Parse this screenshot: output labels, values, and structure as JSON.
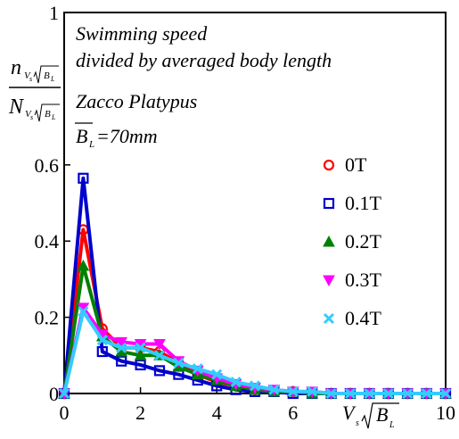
{
  "chart_data": {
    "type": "line",
    "x": [
      0,
      0.5,
      1,
      1.5,
      2,
      2.5,
      3,
      3.5,
      4,
      4.5,
      5,
      5.5,
      6,
      6.5,
      7,
      7.5,
      8,
      8.5,
      9,
      9.5,
      10
    ],
    "series": [
      {
        "name": "0T",
        "color": "#ff0000",
        "marker": "circle",
        "values": [
          0,
          0.43,
          0.17,
          0.12,
          0.12,
          0.11,
          0.08,
          0.05,
          0.03,
          0.02,
          0.01,
          0.005,
          0.005,
          0,
          0,
          0,
          0,
          0,
          0,
          0,
          0
        ]
      },
      {
        "name": "0.1T",
        "color": "#0000cc",
        "marker": "square",
        "values": [
          0,
          0.565,
          0.11,
          0.085,
          0.075,
          0.06,
          0.05,
          0.035,
          0.02,
          0.01,
          0.005,
          0.005,
          0,
          0,
          0,
          0,
          0,
          0,
          0,
          0,
          0
        ]
      },
      {
        "name": "0.2T",
        "color": "#008000",
        "marker": "triangle-up",
        "values": [
          0,
          0.335,
          0.15,
          0.11,
          0.1,
          0.1,
          0.07,
          0.05,
          0.035,
          0.02,
          0.01,
          0.005,
          0.005,
          0,
          0,
          0,
          0,
          0,
          0,
          0,
          0
        ]
      },
      {
        "name": "0.3T",
        "color": "#ff00ff",
        "marker": "triangle-down",
        "values": [
          0,
          0.225,
          0.155,
          0.135,
          0.13,
          0.13,
          0.085,
          0.06,
          0.04,
          0.025,
          0.015,
          0.01,
          0.005,
          0.005,
          0,
          0,
          0,
          0,
          0,
          0,
          0
        ]
      },
      {
        "name": "0.4T",
        "color": "#33ccff",
        "marker": "x",
        "values": [
          0,
          0.215,
          0.14,
          0.12,
          0.12,
          0.1,
          0.08,
          0.065,
          0.05,
          0.03,
          0.02,
          0.01,
          0.005,
          0.005,
          0,
          0,
          0,
          0,
          0,
          0,
          0
        ]
      }
    ],
    "xlim": [
      0,
      10
    ],
    "ylim": [
      0,
      1
    ],
    "xticks": [
      "0",
      "2",
      "4",
      "6",
      "10"
    ],
    "xtick_values": [
      0,
      2,
      4,
      6,
      10
    ],
    "yticks": [
      "0",
      "0.2",
      "0.4",
      "0.6",
      "1"
    ],
    "ytick_values": [
      0,
      0.2,
      0.4,
      0.6,
      1
    ],
    "annotations": [
      "Swimming speed",
      "divided by averaged body length",
      "Zacco Platypus",
      "=70mm"
    ],
    "xlabel": "V",
    "xlabel_sub": "s",
    "xlabel_denominator": "B",
    "xlabel_denominator_sub": "L",
    "ylabel_num": "n",
    "ylabel_den": "N",
    "ylabel_sub_v": "V",
    "ylabel_sub_s": "s",
    "ylabel_sub_b": "B",
    "ylabel_sub_l": "L",
    "bl_symbol": "B",
    "bl_sub": "L",
    "legend_position": "right",
    "grid": false
  }
}
